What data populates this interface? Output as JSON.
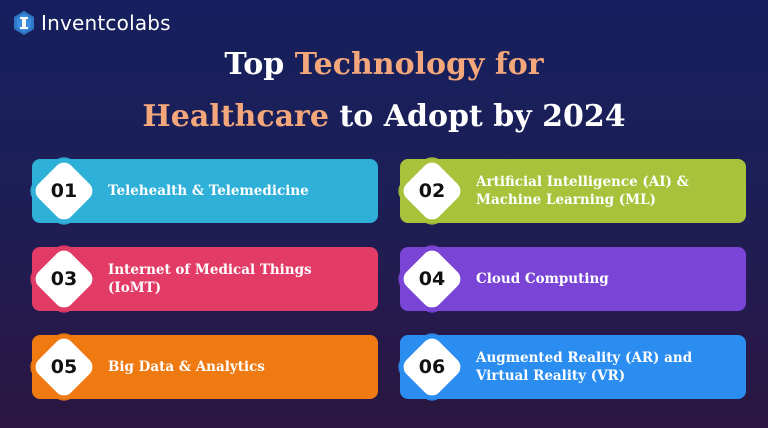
{
  "brand": {
    "name": "Inventcolabs"
  },
  "title": {
    "line1_white": "Top ",
    "line1_accent": "Technology for",
    "line2_accent": "Healthcare",
    "line2_white": " to Adopt by 2024"
  },
  "colors": {
    "accent": "#f4a77a",
    "card1": "#2fb0d8",
    "card2": "#a9c23c",
    "card3": "#e23b66",
    "card4": "#7a45d6",
    "card5": "#f07a12",
    "card6": "#2b8df0"
  },
  "items": [
    {
      "num": "01",
      "label": "Telehealth & Telemedicine"
    },
    {
      "num": "02",
      "label": "Artificial Intelligence (AI) & Machine Learning (ML)"
    },
    {
      "num": "03",
      "label": "Internet of Medical Things (IoMT)"
    },
    {
      "num": "04",
      "label": "Cloud Computing"
    },
    {
      "num": "05",
      "label": "Big Data & Analytics"
    },
    {
      "num": "06",
      "label": "Augmented Reality (AR) and Virtual Reality (VR)"
    }
  ]
}
